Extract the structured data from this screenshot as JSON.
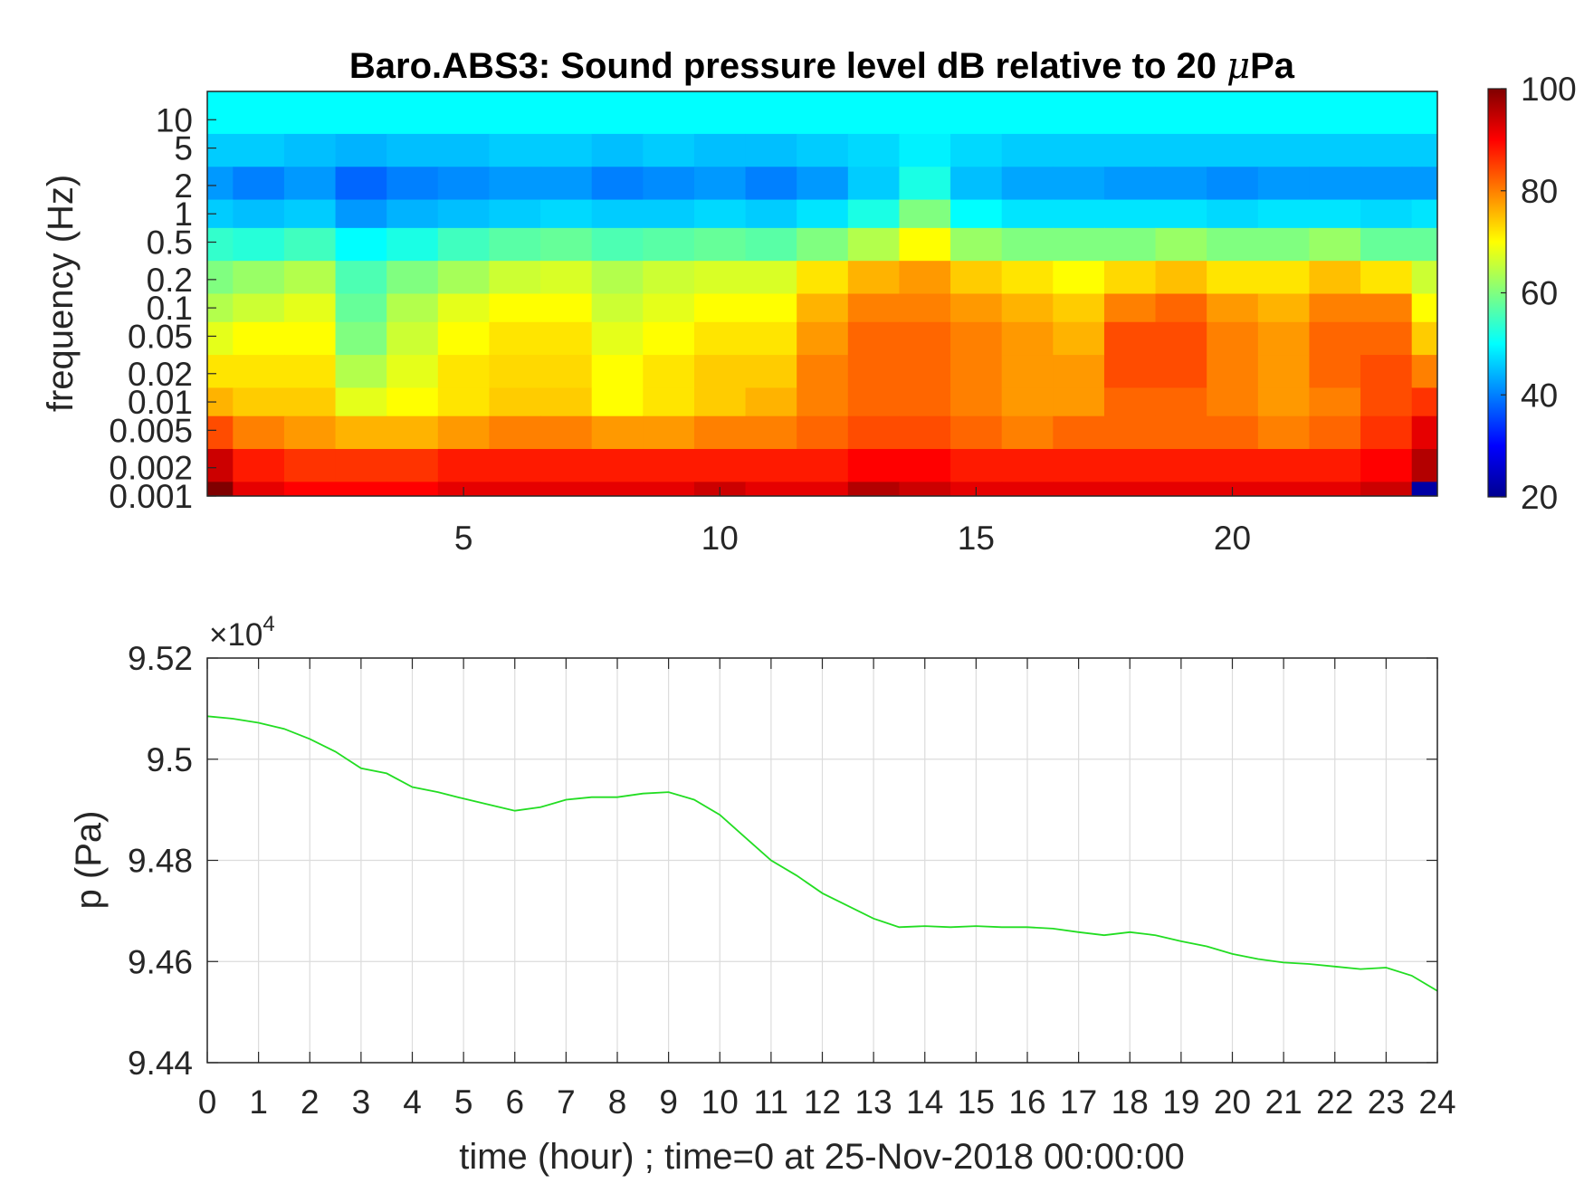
{
  "chart_data": [
    {
      "type": "heatmap",
      "title": "Baro.ABS3: Sound pressure level dB relative to 20 μPa",
      "title_prefix": "Baro.ABS3: Sound pressure level dB relative to 20 ",
      "title_mu": "μ",
      "title_suffix": "Pa",
      "xlabel": "",
      "ylabel": "frequency (Hz)",
      "y_scale": "log",
      "xlim": [
        0,
        24
      ],
      "ylim": [
        0.001,
        20
      ],
      "x_ticks": [
        5,
        10,
        15,
        20
      ],
      "x_tick_labels": [
        "5",
        "10",
        "15",
        "20"
      ],
      "y_ticks": [
        0.001,
        0.002,
        0.005,
        0.01,
        0.02,
        0.05,
        0.1,
        0.2,
        0.5,
        1,
        2,
        5,
        10
      ],
      "y_tick_labels": [
        "0.001",
        "0.002",
        "0.005",
        "0.01",
        "0.02",
        "0.05",
        "0.1",
        "0.2",
        "0.5",
        "1",
        "2",
        "5",
        "10"
      ],
      "colormap": "jet",
      "colorbar": {
        "range": [
          20,
          100
        ],
        "ticks": [
          20,
          40,
          60,
          80,
          100
        ],
        "tick_labels": [
          "20",
          "40",
          "60",
          "80",
          "100"
        ],
        "placement": "right"
      },
      "hours": [
        0,
        1,
        2,
        3,
        4,
        5,
        6,
        7,
        8,
        9,
        10,
        11,
        12,
        13,
        14,
        15,
        16,
        17,
        18,
        19,
        20,
        21,
        22,
        23,
        24
      ],
      "bands_hz": [
        10,
        5,
        2,
        1,
        0.5,
        0.2,
        0.1,
        0.05,
        0.02,
        0.01,
        0.005,
        0.002,
        0.001
      ],
      "level_db": [
        [
          50,
          50,
          50,
          50,
          50,
          50,
          50,
          50,
          50,
          50,
          50,
          50,
          50,
          50,
          50,
          50,
          50,
          50,
          50,
          50,
          50,
          50,
          50,
          50,
          50
        ],
        [
          46,
          46,
          45,
          44,
          45,
          45,
          46,
          46,
          45,
          46,
          45,
          45,
          46,
          47,
          49,
          47,
          46,
          46,
          46,
          46,
          46,
          46,
          46,
          46,
          46
        ],
        [
          42,
          40,
          42,
          38,
          40,
          41,
          42,
          42,
          40,
          41,
          42,
          40,
          42,
          46,
          52,
          45,
          43,
          43,
          42,
          42,
          41,
          42,
          42,
          42,
          42
        ],
        [
          46,
          45,
          46,
          42,
          44,
          45,
          46,
          47,
          46,
          46,
          47,
          46,
          48,
          52,
          60,
          50,
          48,
          48,
          48,
          48,
          47,
          48,
          48,
          47,
          48
        ],
        [
          54,
          53,
          55,
          50,
          52,
          55,
          57,
          58,
          56,
          57,
          58,
          57,
          60,
          64,
          70,
          62,
          60,
          60,
          60,
          62,
          60,
          60,
          62,
          58,
          58
        ],
        [
          60,
          62,
          64,
          56,
          60,
          63,
          66,
          67,
          64,
          66,
          67,
          67,
          72,
          76,
          78,
          74,
          72,
          70,
          73,
          75,
          72,
          72,
          75,
          72,
          66
        ],
        [
          64,
          66,
          68,
          58,
          64,
          68,
          70,
          70,
          66,
          68,
          70,
          70,
          76,
          80,
          80,
          78,
          76,
          74,
          80,
          82,
          78,
          76,
          80,
          80,
          70
        ],
        [
          68,
          70,
          70,
          60,
          66,
          70,
          72,
          72,
          68,
          70,
          72,
          72,
          78,
          82,
          82,
          80,
          78,
          76,
          84,
          84,
          80,
          78,
          82,
          82,
          74
        ],
        [
          72,
          72,
          72,
          64,
          68,
          72,
          73,
          73,
          70,
          72,
          74,
          74,
          80,
          82,
          82,
          80,
          78,
          78,
          84,
          84,
          80,
          78,
          82,
          84,
          80
        ],
        [
          76,
          74,
          74,
          68,
          70,
          72,
          74,
          74,
          70,
          72,
          74,
          76,
          80,
          82,
          82,
          80,
          78,
          78,
          82,
          82,
          80,
          78,
          80,
          84,
          86
        ],
        [
          84,
          80,
          78,
          76,
          76,
          78,
          80,
          80,
          78,
          78,
          80,
          80,
          82,
          84,
          84,
          82,
          80,
          82,
          82,
          82,
          82,
          80,
          82,
          86,
          92
        ],
        [
          94,
          88,
          86,
          86,
          86,
          88,
          88,
          88,
          88,
          88,
          88,
          88,
          88,
          90,
          90,
          88,
          88,
          88,
          88,
          88,
          88,
          88,
          88,
          90,
          96
        ],
        [
          100,
          92,
          90,
          90,
          90,
          92,
          92,
          92,
          92,
          92,
          94,
          92,
          92,
          96,
          94,
          92,
          92,
          92,
          92,
          92,
          92,
          92,
          92,
          94,
          22
        ]
      ]
    },
    {
      "type": "line",
      "title": "",
      "xlabel": "time (hour) ; time=0 at 25-Nov-2018 00:00:00",
      "ylabel": "p (Pa)",
      "exponent_label_base": "×10",
      "exponent_label_power": "4",
      "xlim": [
        0,
        24
      ],
      "ylim": [
        94400,
        95200
      ],
      "x_ticks": [
        0,
        1,
        2,
        3,
        4,
        5,
        6,
        7,
        8,
        9,
        10,
        11,
        12,
        13,
        14,
        15,
        16,
        17,
        18,
        19,
        20,
        21,
        22,
        23,
        24
      ],
      "x_tick_labels": [
        "0",
        "1",
        "2",
        "3",
        "4",
        "5",
        "6",
        "7",
        "8",
        "9",
        "10",
        "11",
        "12",
        "13",
        "14",
        "15",
        "16",
        "17",
        "18",
        "19",
        "20",
        "21",
        "22",
        "23",
        "24"
      ],
      "y_ticks": [
        94400,
        94600,
        94800,
        95000,
        95200
      ],
      "y_tick_labels": [
        "9.44",
        "9.46",
        "9.48",
        "9.5",
        "9.52"
      ],
      "grid": true,
      "line_color": "#22dd22",
      "x": [
        0,
        0.5,
        1,
        1.5,
        2,
        2.5,
        3,
        3.5,
        4,
        4.5,
        5,
        5.5,
        6,
        6.5,
        7,
        7.5,
        8,
        8.5,
        9,
        9.5,
        10,
        10.5,
        11,
        11.5,
        12,
        12.5,
        13,
        13.5,
        14,
        14.5,
        15,
        15.5,
        16,
        16.5,
        17,
        17.5,
        18,
        18.5,
        19,
        19.5,
        20,
        20.5,
        21,
        21.5,
        22,
        22.5,
        23,
        23.5,
        24
      ],
      "y": [
        95085,
        95080,
        95072,
        95060,
        95040,
        95015,
        94982,
        94972,
        94945,
        94935,
        94922,
        94910,
        94898,
        94905,
        94920,
        94925,
        94925,
        94932,
        94935,
        94920,
        94890,
        94845,
        94800,
        94770,
        94735,
        94710,
        94685,
        94668,
        94670,
        94668,
        94670,
        94668,
        94668,
        94665,
        94658,
        94652,
        94658,
        94652,
        94640,
        94630,
        94615,
        94605,
        94598,
        94595,
        94590,
        94585,
        94588,
        94572,
        94542
      ]
    }
  ]
}
